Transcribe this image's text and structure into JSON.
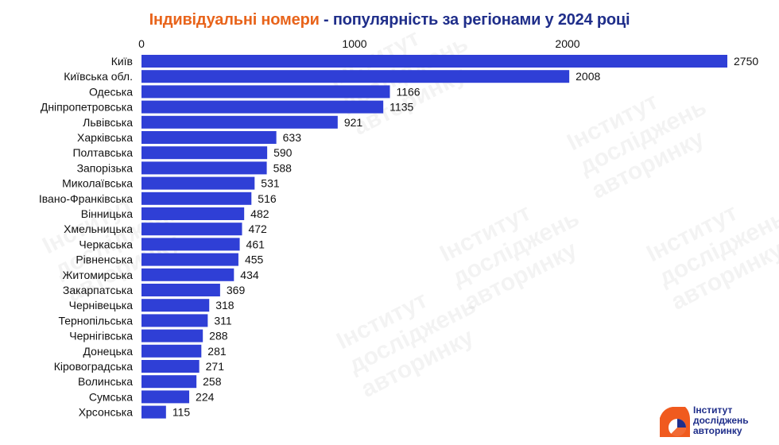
{
  "title": {
    "part1": "Індивідуальні номери",
    "part2": " - популярність за регіонами у 2024 році"
  },
  "colors": {
    "bar": "#2f3fd6",
    "title_accent": "#e8641b",
    "title_main": "#1f2e8a",
    "logo_orange": "#f05a1e"
  },
  "chart_data": {
    "type": "bar",
    "orientation": "horizontal",
    "x_axis_position": "top",
    "xlim": [
      0,
      2750
    ],
    "x_ticks": [
      0,
      1000,
      2000
    ],
    "categories": [
      "Київ",
      "Київська обл.",
      "Одеська",
      "Дніпропетровська",
      "Львівська",
      "Харківська",
      "Полтавська",
      "Запорізька",
      "Миколаївська",
      "Івано-Франківська",
      "Вінницька",
      "Хмельницька",
      "Черкаська",
      "Рівненська",
      "Житомирська",
      "Закарпатська",
      "Чернівецька",
      "Тернопільська",
      "Чернігівська",
      "Донецька",
      "Кіровоградська",
      "Волинська",
      "Сумська",
      "Хрсонська"
    ],
    "values": [
      2750,
      2008,
      1166,
      1135,
      921,
      633,
      590,
      588,
      531,
      516,
      482,
      472,
      461,
      455,
      434,
      369,
      318,
      311,
      288,
      281,
      271,
      258,
      224,
      115
    ],
    "data_labels": true,
    "grid": false
  },
  "watermark": {
    "text": "Інститут досліджень авторинку"
  },
  "logo": {
    "text": "Інститут\nдосліджень\nавторинку"
  }
}
